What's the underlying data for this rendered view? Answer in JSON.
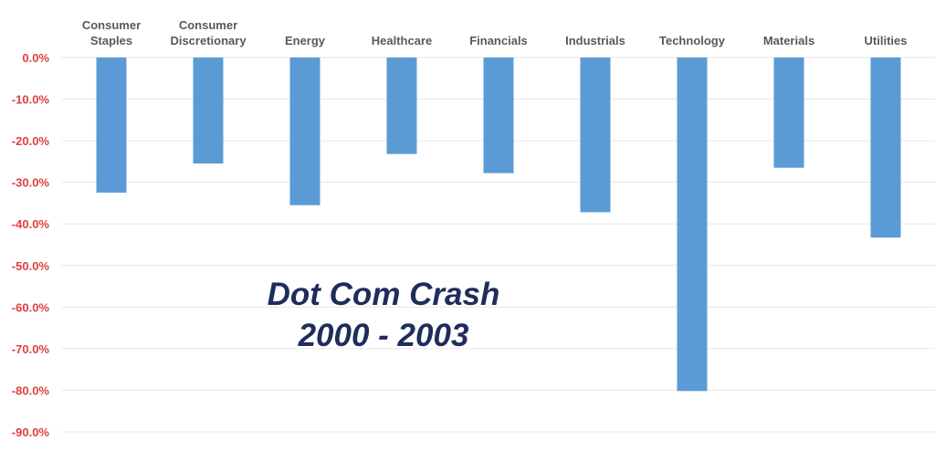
{
  "chart_data": {
    "type": "bar",
    "title": "",
    "xlabel": "",
    "ylabel": "",
    "categories": [
      [
        "Consumer",
        "Staples"
      ],
      [
        "Consumer",
        "Discretionary"
      ],
      [
        "Energy"
      ],
      [
        "Healthcare"
      ],
      [
        "Financials"
      ],
      [
        "Industrials"
      ],
      [
        "Technology"
      ],
      [
        "Materials"
      ],
      [
        "Utilities"
      ]
    ],
    "values": [
      -32.5,
      -25.5,
      -35.5,
      -23.2,
      -27.8,
      -37.2,
      -80.2,
      -26.5,
      -43.3
    ],
    "ylim": [
      -90,
      0
    ],
    "yticks": [
      0,
      -10,
      -20,
      -30,
      -40,
      -50,
      -60,
      -70,
      -80,
      -90
    ],
    "ytick_labels": [
      "0.0%",
      "-10.0%",
      "-20.0%",
      "-30.0%",
      "-40.0%",
      "-50.0%",
      "-60.0%",
      "-70.0%",
      "-80.0%",
      "-90.0%"
    ],
    "grid": true,
    "legend": "none",
    "category_axis_position": "top",
    "annotation": [
      "Dot Com Crash",
      "2000 - 2003"
    ],
    "colors": {
      "bar": "#5b9bd5",
      "tick_text": "#e04040",
      "category_text": "#595959",
      "annotation": "#1f2d5c",
      "gridline": "#e6e6e6"
    }
  }
}
